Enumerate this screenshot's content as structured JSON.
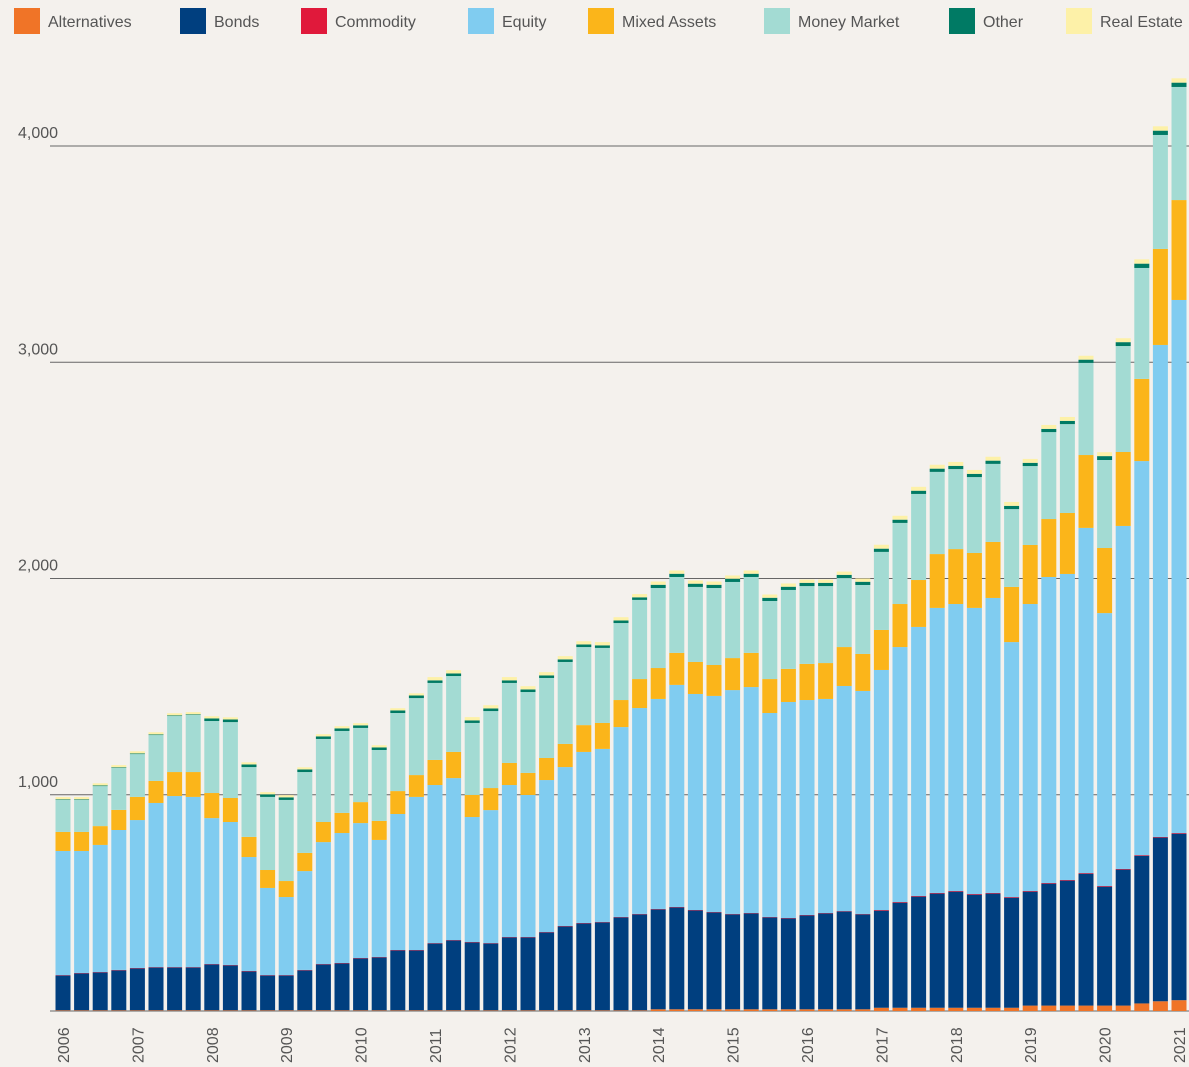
{
  "chart_data": {
    "type": "stacked_bar",
    "categories": [
      "2006",
      null,
      null,
      null,
      "2007",
      null,
      null,
      null,
      "2008",
      null,
      null,
      null,
      "2009",
      null,
      null,
      null,
      "2010",
      null,
      null,
      null,
      "2011",
      null,
      null,
      null,
      "2012",
      null,
      null,
      null,
      "2013",
      null,
      null,
      null,
      "2014",
      null,
      null,
      null,
      "2015",
      null,
      null,
      null,
      "2016",
      null,
      null,
      null,
      "2017",
      null,
      null,
      null,
      "2018",
      null,
      null,
      null,
      "2019",
      null,
      null,
      null,
      "2020",
      null,
      null,
      null,
      "2021"
    ],
    "series": [
      {
        "name": "Alternatives",
        "color": "#f07427",
        "values": [
          3,
          3,
          3,
          3,
          3,
          3,
          3,
          3,
          3,
          3,
          3,
          3,
          3,
          3,
          3,
          3,
          3,
          3,
          3,
          3,
          3,
          3,
          3,
          3,
          3,
          3,
          3,
          3,
          3,
          3,
          3,
          3,
          8,
          8,
          8,
          8,
          8,
          8,
          8,
          8,
          8,
          8,
          8,
          8,
          15,
          15,
          15,
          15,
          15,
          15,
          15,
          15,
          25,
          25,
          25,
          25,
          25,
          25,
          35,
          45,
          50
        ]
      },
      {
        "name": "Bonds",
        "color": "#003f7f",
        "values": [
          161,
          171,
          175,
          185,
          194,
          198,
          198,
          198,
          212,
          208,
          180,
          161,
          161,
          185,
          212,
          217,
          240,
          245,
          277,
          277,
          309,
          323,
          314,
          309,
          337,
          337,
          360,
          388,
          402,
          407,
          430,
          444,
          462,
          471,
          457,
          448,
          439,
          443,
          425,
          420,
          434,
          443,
          452,
          439,
          449,
          486,
          514,
          528,
          537,
          523,
          528,
          509,
          527,
          564,
          578,
          610,
          550,
          629,
          683,
          757,
          770
        ]
      },
      {
        "name": "Commodity",
        "color": "#e0193b",
        "values": [
          2,
          2,
          2,
          2,
          2,
          2,
          2,
          2,
          2,
          2,
          2,
          2,
          2,
          2,
          2,
          2,
          2,
          2,
          2,
          2,
          2,
          2,
          2,
          2,
          2,
          2,
          2,
          2,
          2,
          2,
          2,
          2,
          2,
          2,
          2,
          2,
          2,
          2,
          2,
          2,
          2,
          2,
          2,
          2,
          3,
          3,
          3,
          3,
          3,
          3,
          3,
          3,
          3,
          3,
          3,
          3,
          3,
          3,
          3,
          3,
          3
        ]
      },
      {
        "name": "Equity",
        "color": "#80ccf0",
        "values": [
          574,
          564,
          588,
          647,
          684,
          759,
          791,
          787,
          675,
          661,
          527,
          403,
          361,
          457,
          564,
          601,
          624,
          541,
          629,
          708,
          731,
          749,
          578,
          615,
          703,
          657,
          703,
          735,
          791,
          800,
          878,
          952,
          971,
          1027,
          999,
          999,
          1035,
          1045,
          943,
          999,
          994,
          990,
          1041,
          1031,
          1110,
          1179,
          1244,
          1318,
          1327,
          1323,
          1364,
          1179,
          1327,
          1415,
          1415,
          1596,
          1262,
          1586,
          1822,
          2275,
          2465
        ]
      },
      {
        "name": "Mixed Assets",
        "color": "#fbb51a",
        "values": [
          88,
          88,
          87,
          93,
          107,
          102,
          111,
          115,
          116,
          111,
          93,
          83,
          74,
          84,
          93,
          93,
          97,
          88,
          106,
          101,
          116,
          121,
          102,
          102,
          102,
          102,
          102,
          107,
          124,
          120,
          125,
          134,
          143,
          148,
          148,
          143,
          148,
          158,
          157,
          153,
          167,
          166,
          180,
          171,
          185,
          199,
          217,
          249,
          254,
          254,
          259,
          255,
          273,
          268,
          282,
          337,
          301,
          342,
          380,
          444,
          462
        ]
      },
      {
        "name": "Money Market",
        "color": "#a3dbd3",
        "values": [
          148,
          148,
          185,
          194,
          198,
          212,
          259,
          264,
          333,
          351,
          323,
          338,
          375,
          374,
          384,
          379,
          343,
          328,
          361,
          356,
          356,
          351,
          333,
          356,
          370,
          374,
          370,
          379,
          361,
          347,
          356,
          366,
          370,
          351,
          347,
          356,
          352,
          351,
          361,
          365,
          360,
          356,
          319,
          319,
          361,
          375,
          398,
          380,
          370,
          351,
          361,
          360,
          365,
          402,
          411,
          426,
          407,
          490,
          513,
          527,
          523
        ]
      },
      {
        "name": "Other",
        "color": "#007a64",
        "values": [
          3,
          3,
          3,
          3,
          3,
          3,
          3,
          3,
          12,
          12,
          12,
          12,
          12,
          12,
          12,
          12,
          12,
          12,
          12,
          12,
          12,
          12,
          12,
          12,
          12,
          12,
          12,
          12,
          12,
          12,
          12,
          12,
          15,
          15,
          15,
          15,
          15,
          15,
          15,
          15,
          15,
          15,
          15,
          15,
          15,
          15,
          15,
          15,
          15,
          15,
          15,
          15,
          15,
          15,
          15,
          15,
          18,
          18,
          20,
          20,
          20
        ]
      },
      {
        "name": "Real Estate",
        "color": "#fdf1a8",
        "values": [
          10,
          10,
          10,
          10,
          10,
          10,
          10,
          10,
          10,
          10,
          10,
          10,
          10,
          10,
          10,
          10,
          10,
          10,
          10,
          10,
          15,
          15,
          15,
          15,
          15,
          15,
          15,
          15,
          15,
          15,
          15,
          15,
          15,
          15,
          15,
          15,
          15,
          15,
          15,
          15,
          15,
          15,
          15,
          15,
          18,
          18,
          18,
          18,
          18,
          18,
          18,
          18,
          18,
          18,
          18,
          18,
          18,
          18,
          20,
          20,
          20
        ]
      }
    ],
    "ylim": [
      0,
      4400
    ],
    "yticks": [
      {
        "value": 1000,
        "label": "1,000"
      },
      {
        "value": 2000,
        "label": "2,000"
      },
      {
        "value": 3000,
        "label": "3,000"
      },
      {
        "value": 4000,
        "label": "4,000"
      }
    ],
    "grid": true
  }
}
